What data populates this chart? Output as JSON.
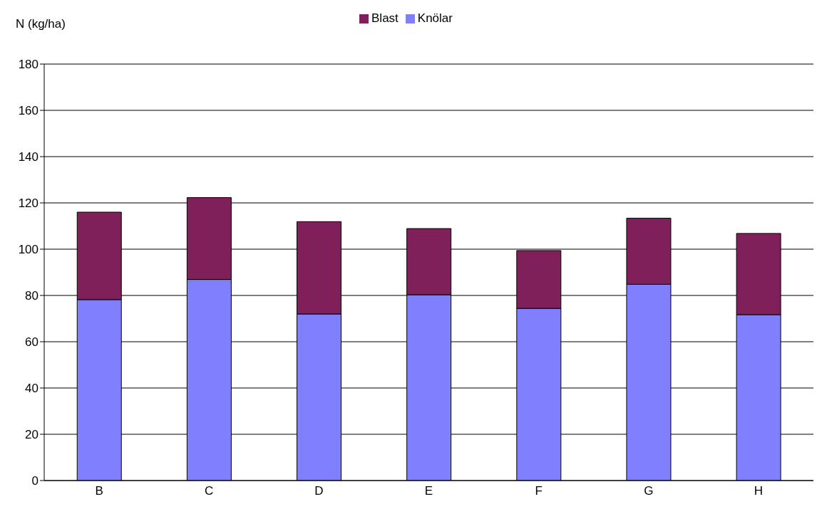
{
  "chart_data": {
    "type": "bar",
    "ylabel": "N (kg/ha)",
    "categories": [
      "B",
      "C",
      "D",
      "E",
      "F",
      "G",
      "H"
    ],
    "stacked": true,
    "series": [
      {
        "name": "Knölar",
        "color": "#8080ff",
        "values": [
          78.2,
          86.9,
          72.0,
          80.3,
          74.4,
          84.8,
          71.7
        ]
      },
      {
        "name": "Blast",
        "color": "#80205a",
        "values": [
          37.8,
          35.4,
          39.9,
          28.6,
          25.0,
          28.6,
          35.1
        ]
      }
    ],
    "ylim": [
      0,
      180
    ],
    "yticks": [
      0,
      20,
      40,
      60,
      80,
      100,
      120,
      140,
      160,
      180
    ],
    "grid": "y",
    "legend": "top"
  }
}
